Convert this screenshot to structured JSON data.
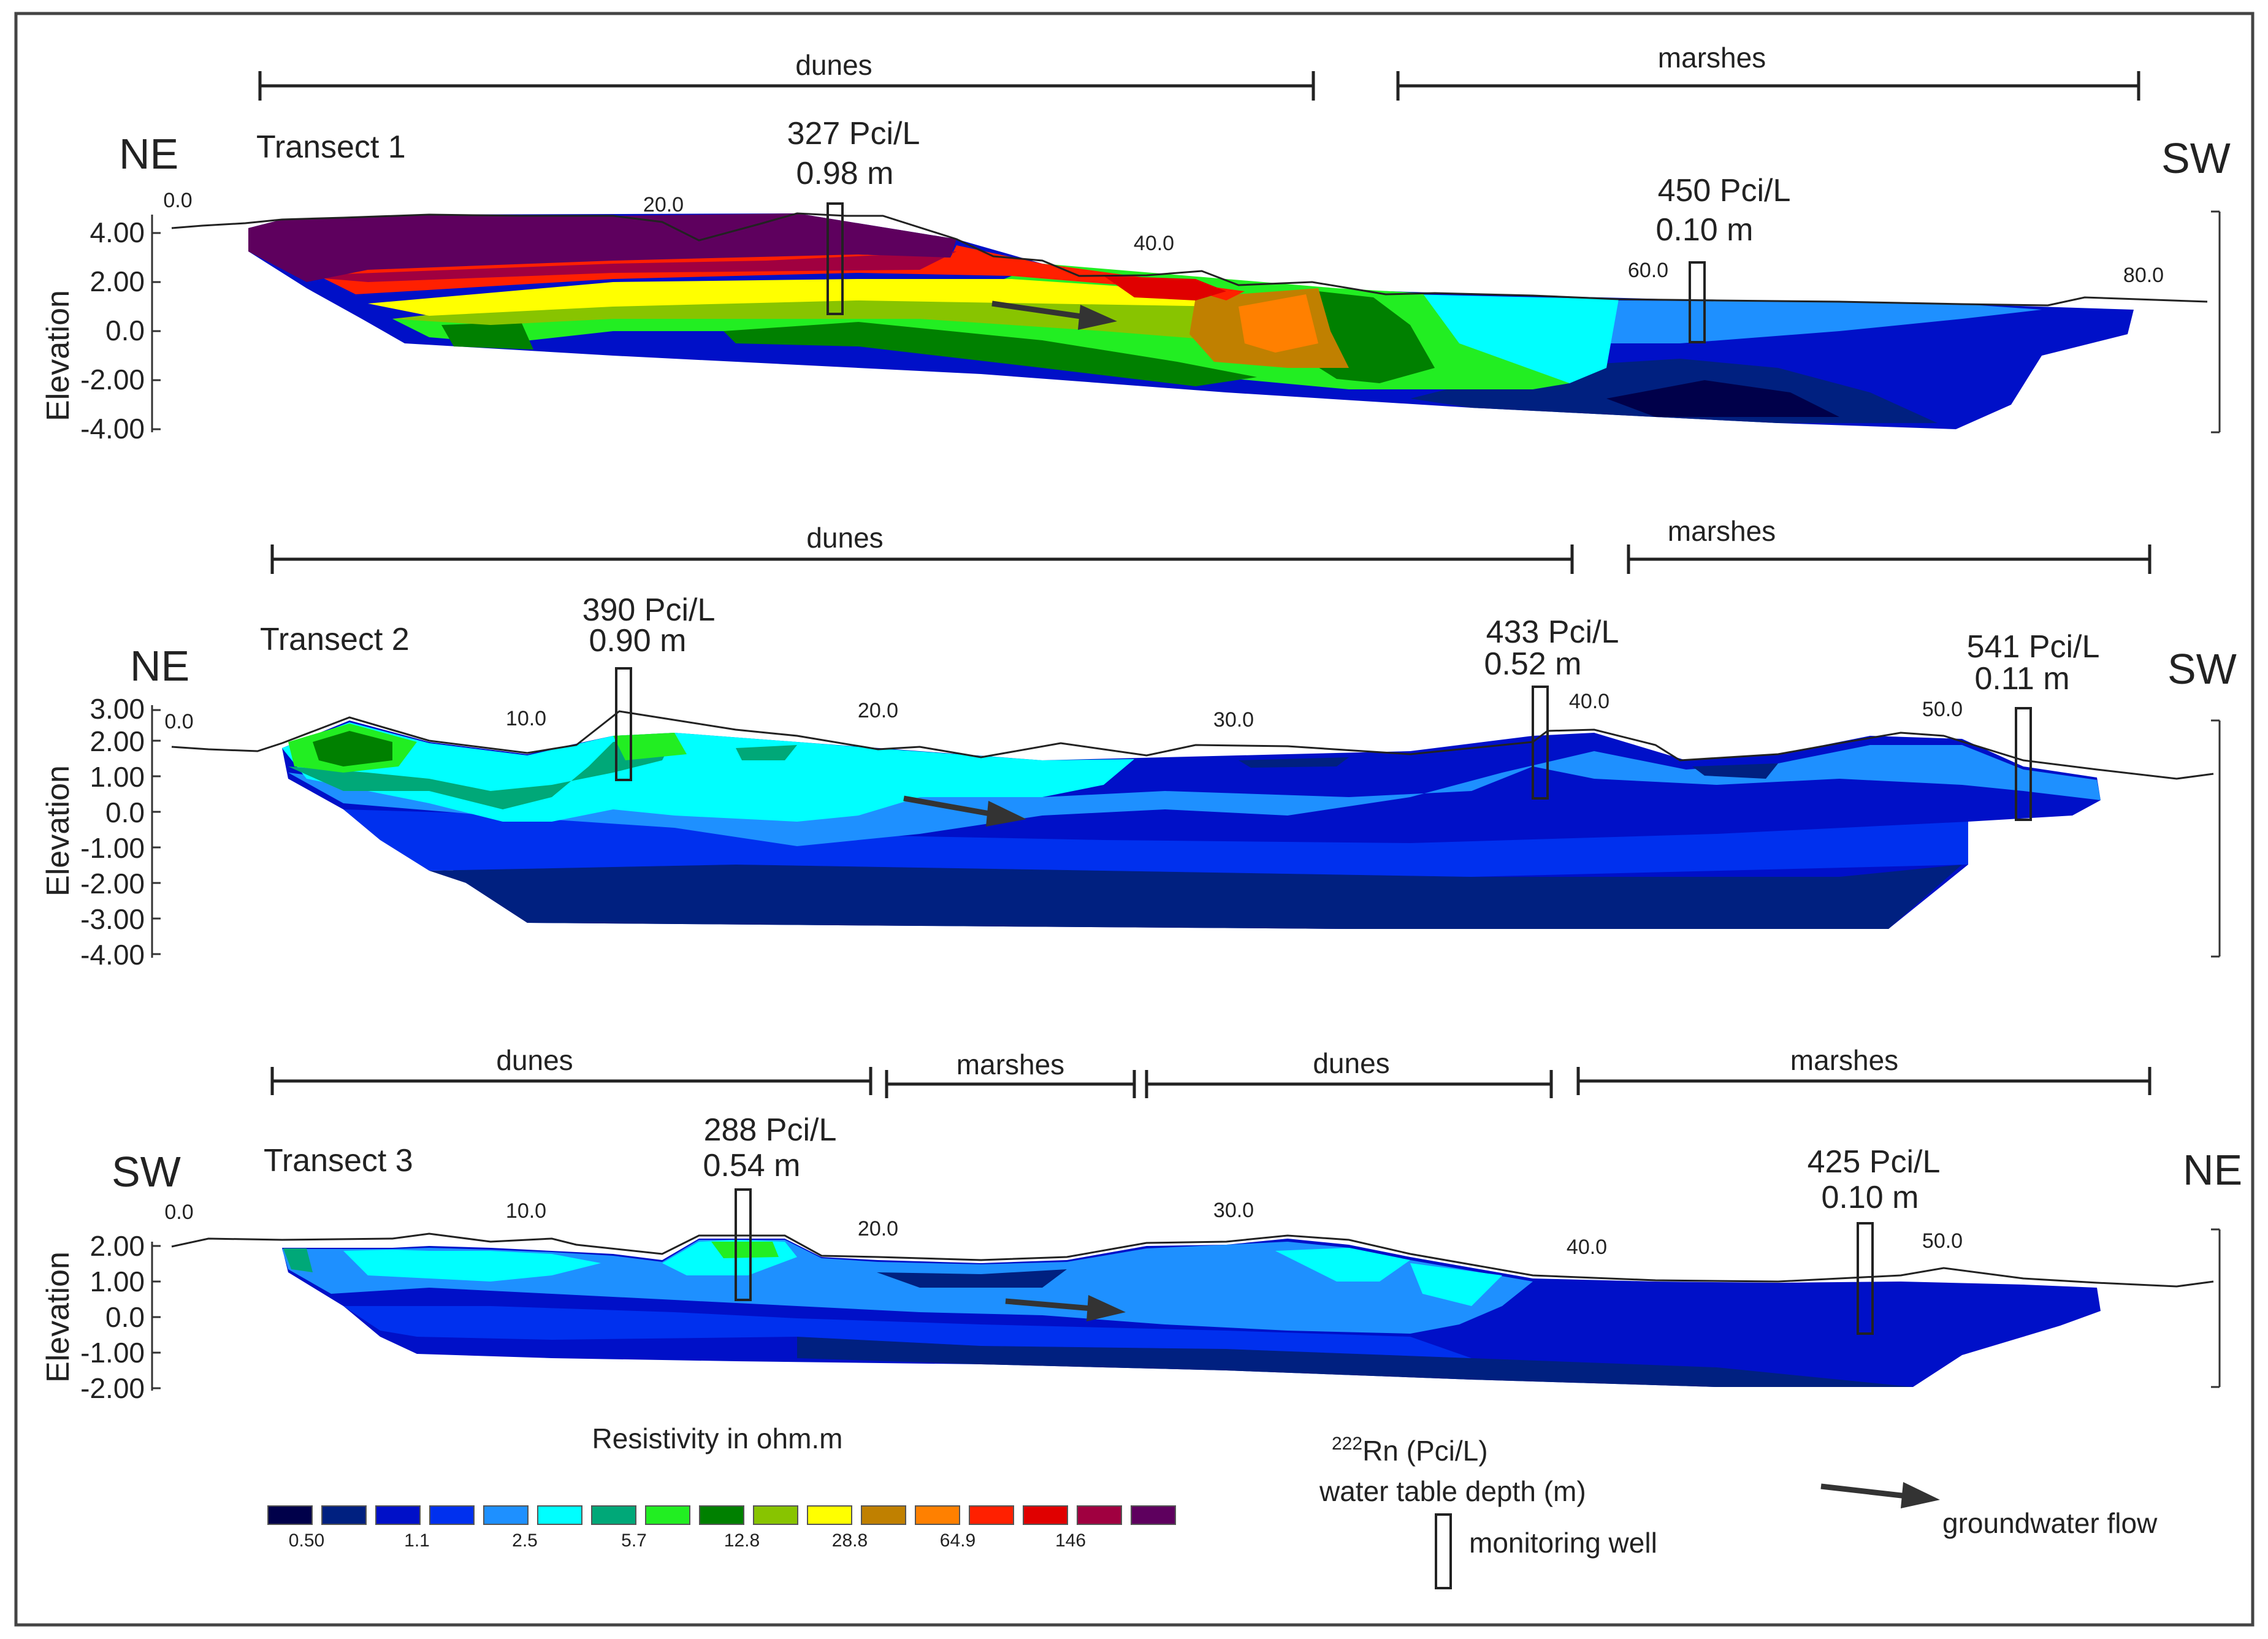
{
  "colors": {
    "resistivity_scale": [
      "#00004a",
      "#002080",
      "#0010c8",
      "#0030ee",
      "#1e90ff",
      "#00ffff",
      "#00a878",
      "#22ee22",
      "#008000",
      "#88c400",
      "#ffff00",
      "#c08000",
      "#ff8000",
      "#ff2000",
      "#e00000",
      "#a00040",
      "#5e005e"
    ]
  },
  "transects": [
    {
      "title": "Transect 1",
      "left_dir": "NE",
      "right_dir": "SW",
      "axis_label": "Elevation",
      "y_ticks": [
        "4.00",
        "2.00",
        "0.0",
        "-2.00",
        "-4.00"
      ],
      "x_ticks": [
        "0.0",
        "20.0",
        "40.0",
        "60.0",
        "80.0"
      ],
      "zones": [
        {
          "label": "dunes"
        },
        {
          "label": "marshes"
        }
      ],
      "wells": [
        {
          "radon": "327 Pci/L",
          "depth": "0.98 m"
        },
        {
          "radon": "450 Pci/L",
          "depth": "0.10 m"
        }
      ]
    },
    {
      "title": "Transect 2",
      "left_dir": "NE",
      "right_dir": "SW",
      "axis_label": "Elevation",
      "y_ticks": [
        "3.00",
        "2.00",
        "1.00",
        "0.0",
        "-1.00",
        "-2.00",
        "-3.00",
        "-4.00"
      ],
      "x_ticks": [
        "0.0",
        "10.0",
        "20.0",
        "30.0",
        "40.0",
        "50.0"
      ],
      "zones": [
        {
          "label": "dunes"
        },
        {
          "label": "marshes"
        }
      ],
      "wells": [
        {
          "radon": "390 Pci/L",
          "depth": "0.90 m"
        },
        {
          "radon": "433 Pci/L",
          "depth": "0.52 m"
        },
        {
          "radon": "541 Pci/L",
          "depth": "0.11 m"
        }
      ]
    },
    {
      "title": "Transect 3",
      "left_dir": "SW",
      "right_dir": "NE",
      "axis_label": "Elevation",
      "y_ticks": [
        "2.00",
        "1.00",
        "0.0",
        "-1.00",
        "-2.00"
      ],
      "x_ticks": [
        "0.0",
        "10.0",
        "20.0",
        "30.0",
        "40.0",
        "50.0"
      ],
      "zones": [
        {
          "label": "dunes"
        },
        {
          "label": "marshes"
        },
        {
          "label": "dunes"
        },
        {
          "label": "marshes"
        }
      ],
      "wells": [
        {
          "radon": "288 Pci/L",
          "depth": "0.54 m"
        },
        {
          "radon": "425 Pci/L",
          "depth": "0.10 m"
        }
      ]
    }
  ],
  "legend": {
    "resistivity_title": "Resistivity in ohm.m",
    "scale_labels": [
      "0.50",
      "1.1",
      "2.5",
      "5.7",
      "12.8",
      "28.8",
      "64.9",
      "146"
    ],
    "radon_superscript": "222",
    "radon_label": "Rn (Pci/L)",
    "water_table_label": "water table depth (m)",
    "monitoring_well": "monitoring well",
    "groundwater_flow": "groundwater flow"
  }
}
